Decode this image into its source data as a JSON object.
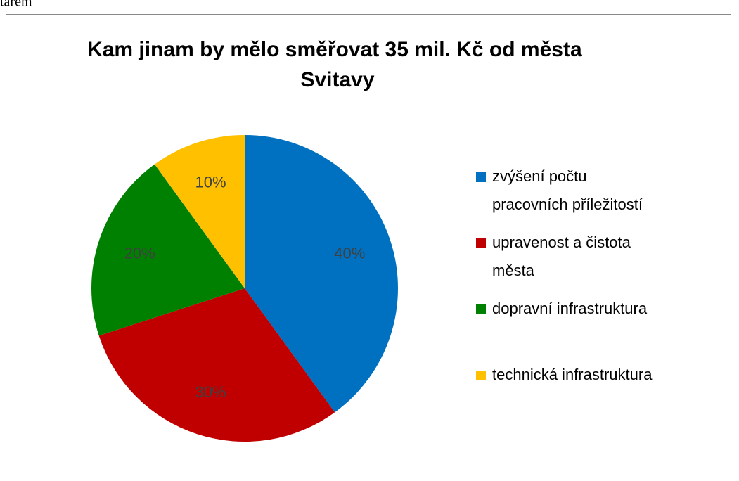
{
  "header_text": "tařem",
  "chart_data": {
    "type": "pie",
    "title": "Kam jinam by mělo směřovat 35 mil. Kč od města Svitavy",
    "categories": [
      "zvýšení počtu pracovních příležitostí",
      "upravenost a čistota města",
      "dopravní infrastruktura",
      "technická infrastruktura"
    ],
    "values": [
      40,
      30,
      20,
      10
    ],
    "value_labels": [
      "40%",
      "30%",
      "20%",
      "10%"
    ],
    "colors": [
      "#0070c0",
      "#c00000",
      "#008000",
      "#ffc000"
    ],
    "legend": "right"
  }
}
